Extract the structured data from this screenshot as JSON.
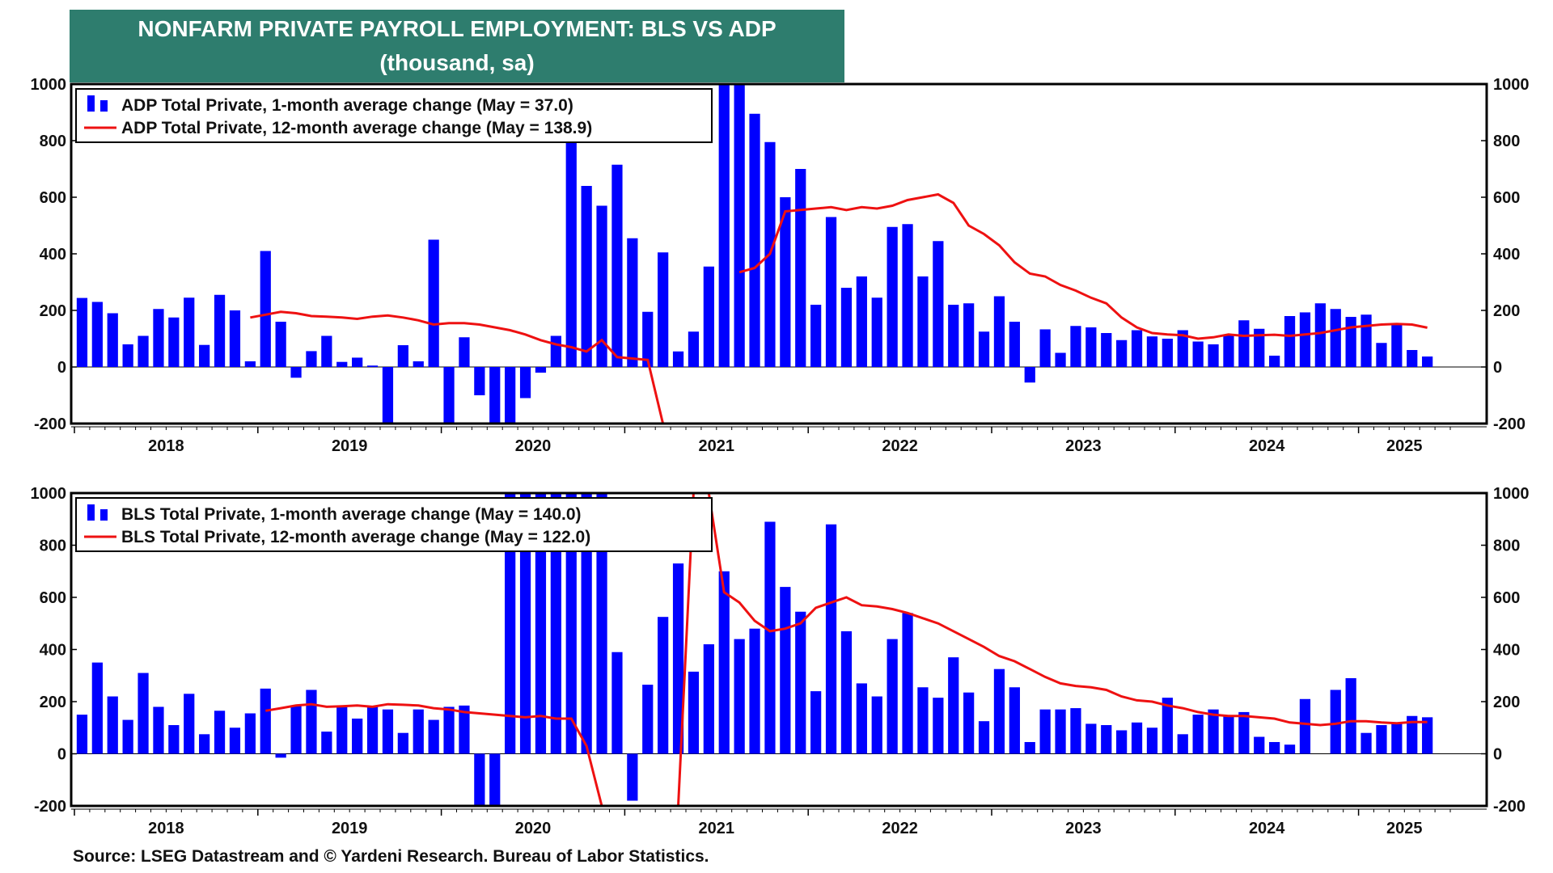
{
  "header": {
    "title_line1": "NONFARM PRIVATE PAYROLL EMPLOYMENT: BLS VS ADP",
    "title_line2": "(thousand, sa)"
  },
  "footer": {
    "source": "Source: LSEG Datastream and © Yardeni Research. Bureau of Labor Statistics."
  },
  "colors": {
    "bar": "#0000ff",
    "line": "#ee1111",
    "header_bg": "#2e7d6e"
  },
  "chart_data": [
    {
      "type": "bar",
      "id": "adp",
      "ylim": [
        -200,
        1000
      ],
      "yticks": [
        -200,
        0,
        200,
        400,
        600,
        800,
        1000
      ],
      "yticks_right": [
        -200,
        0,
        200,
        400,
        600,
        800,
        1000
      ],
      "xlabels": [
        "2018",
        "2019",
        "2020",
        "2021",
        "2022",
        "2023",
        "2024",
        "2025"
      ],
      "start": "2018-01",
      "legend": [
        "ADP Total Private, 1-month average change (May = 37.0)",
        "ADP Total Private, 12-month average change (May = 138.9)"
      ],
      "series": [
        {
          "name": "ADP Total Private, 1-month average change",
          "kind": "bar",
          "values": [
            244,
            230,
            190,
            80,
            110,
            205,
            175,
            245,
            78,
            255,
            200,
            20,
            410,
            160,
            -38,
            56,
            110,
            18,
            33,
            5,
            -200,
            77,
            20,
            450,
            -200,
            105,
            -100,
            -200,
            -200,
            -110,
            -20,
            110,
            830,
            640,
            570,
            715,
            455,
            195,
            405,
            55,
            125,
            355,
            1000,
            1000,
            895,
            795,
            600,
            700,
            220,
            530,
            280,
            320,
            245,
            495,
            505,
            320,
            445,
            220,
            225,
            125,
            250,
            160,
            -55,
            133,
            50,
            145,
            140,
            120,
            95,
            130,
            108,
            100,
            130,
            90,
            80,
            115,
            165,
            135,
            40,
            180,
            193,
            225,
            205,
            177,
            185,
            85,
            155,
            60,
            37
          ]
        },
        {
          "name": "ADP Total Private, 12-month average change",
          "kind": "line",
          "values": [
            null,
            null,
            null,
            null,
            null,
            null,
            null,
            null,
            null,
            null,
            null,
            175,
            185,
            195,
            190,
            180,
            178,
            175,
            170,
            178,
            182,
            175,
            165,
            150,
            155,
            155,
            150,
            140,
            130,
            115,
            95,
            80,
            70,
            55,
            95,
            35,
            30,
            25,
            -200,
            -200,
            -200,
            -200,
            null,
            335,
            350,
            400,
            550,
            555,
            560,
            565,
            555,
            565,
            560,
            570,
            590,
            600,
            610,
            580,
            500,
            470,
            430,
            370,
            330,
            320,
            290,
            270,
            245,
            225,
            175,
            140,
            120,
            115,
            112,
            100,
            105,
            115,
            110,
            112,
            114,
            110,
            115,
            120,
            130,
            140,
            145,
            150,
            152,
            150,
            139
          ]
        }
      ]
    },
    {
      "type": "bar",
      "id": "bls",
      "ylim": [
        -200,
        1000
      ],
      "yticks": [
        -200,
        0,
        200,
        400,
        600,
        800,
        1000
      ],
      "yticks_right": [
        -200,
        0,
        200,
        400,
        600,
        800,
        1000
      ],
      "xlabels": [
        "2018",
        "2019",
        "2020",
        "2021",
        "2022",
        "2023",
        "2024",
        "2025"
      ],
      "start": "2018-01",
      "legend": [
        "BLS Total Private, 1-month average change (May = 140.0)",
        "BLS Total Private, 12-month average change (May = 122.0)"
      ],
      "series": [
        {
          "name": "BLS Total Private, 1-month average change",
          "kind": "bar",
          "values": [
            150,
            350,
            220,
            130,
            310,
            180,
            110,
            230,
            75,
            165,
            100,
            155,
            250,
            -15,
            185,
            245,
            85,
            180,
            135,
            180,
            170,
            80,
            170,
            130,
            180,
            185,
            -200,
            -200,
            1000,
            1000,
            1000,
            1000,
            1000,
            1000,
            1000,
            390,
            -180,
            265,
            525,
            730,
            315,
            420,
            700,
            440,
            480,
            890,
            640,
            545,
            240,
            880,
            470,
            270,
            220,
            440,
            540,
            255,
            215,
            370,
            235,
            125,
            325,
            255,
            45,
            170,
            170,
            175,
            115,
            110,
            90,
            120,
            100,
            215,
            75,
            150,
            170,
            145,
            160,
            65,
            45,
            35,
            210,
            0,
            245,
            290,
            80,
            110,
            120,
            145,
            140
          ]
        },
        {
          "name": "BLS Total Private, 12-month average change",
          "kind": "line",
          "values": [
            null,
            null,
            null,
            null,
            null,
            null,
            null,
            null,
            null,
            null,
            null,
            null,
            165,
            175,
            185,
            190,
            180,
            182,
            185,
            180,
            190,
            188,
            185,
            175,
            170,
            160,
            155,
            150,
            145,
            140,
            145,
            135,
            135,
            30,
            -200,
            -200,
            -200,
            -200,
            -200,
            -200,
            1000,
            1000,
            620,
            580,
            510,
            470,
            480,
            500,
            560,
            580,
            600,
            570,
            565,
            555,
            540,
            520,
            500,
            470,
            440,
            410,
            375,
            355,
            325,
            295,
            270,
            260,
            255,
            245,
            220,
            205,
            200,
            185,
            175,
            160,
            150,
            145,
            145,
            140,
            135,
            120,
            115,
            110,
            115,
            125,
            125,
            120,
            117,
            122,
            122
          ]
        }
      ]
    }
  ]
}
